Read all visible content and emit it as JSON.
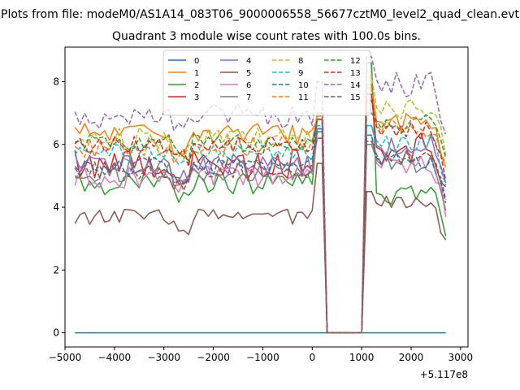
{
  "chart_data": {
    "type": "line",
    "suptitle": "Plots from file: modeM0/AS1A14_083T06_9000006558_56677cztM0_level2_quad_clean.evt",
    "title": "Quadrant 3 module wise count rates with 100.0s bins.",
    "xlabel": "",
    "ylabel": "",
    "x_offset_label": "+5.117e8",
    "xlim": [
      -5000,
      3150
    ],
    "ylim": [
      -0.45,
      9.1
    ],
    "xticks": [
      -5000,
      -4000,
      -3000,
      -2000,
      -1000,
      0,
      1000,
      2000,
      3000
    ],
    "xtick_labels": [
      "−5000",
      "−4000",
      "−3000",
      "−2000",
      "−1000",
      "0",
      "1000",
      "2000",
      "3000"
    ],
    "yticks": [
      0,
      2,
      4,
      6,
      8
    ],
    "ytick_labels": [
      "0",
      "2",
      "4",
      "6",
      "8"
    ],
    "legend": {
      "placement": "top-center",
      "ncol": 4
    },
    "gap": {
      "start": 250,
      "end": 1050
    },
    "x_range": {
      "start": -4800,
      "end": 2750,
      "step": 100
    },
    "series": [
      {
        "name": "0",
        "color": "#1f77b4",
        "style": "solid",
        "level": 0.0,
        "variation": 0.0,
        "edge": 0.0,
        "right_shift": 0.0,
        "peak": 0.0
      },
      {
        "name": "1",
        "color": "#ff7f0e",
        "style": "solid",
        "level": 6.35,
        "variation": 0.35,
        "edge": 6.8,
        "right_shift": 0.4,
        "peak": 7.9
      },
      {
        "name": "2",
        "color": "#2ca02c",
        "style": "solid",
        "level": 4.75,
        "variation": 0.35,
        "edge": 6.4,
        "right_shift": -0.3,
        "peak": 8.6
      },
      {
        "name": "3",
        "color": "#d62728",
        "style": "solid",
        "level": 5.4,
        "variation": 0.5,
        "edge": 7.0,
        "right_shift": 0.5,
        "peak": 7.6
      },
      {
        "name": "4",
        "color": "#9467bd",
        "style": "solid",
        "level": 5.35,
        "variation": 0.35,
        "edge": 6.8,
        "right_shift": 0.6,
        "peak": 6.6
      },
      {
        "name": "5",
        "color": "#8c564b",
        "style": "solid",
        "level": 3.7,
        "variation": 0.25,
        "edge": 5.4,
        "right_shift": 0.4,
        "peak": 4.5
      },
      {
        "name": "6",
        "color": "#e377c2",
        "style": "solid",
        "level": 4.95,
        "variation": 0.35,
        "edge": 6.2,
        "right_shift": 0.4,
        "peak": 6.3
      },
      {
        "name": "7",
        "color": "#7f7f7f",
        "style": "solid",
        "level": 5.15,
        "variation": 0.35,
        "edge": 6.5,
        "right_shift": 0.3,
        "peak": 6.0
      },
      {
        "name": "8",
        "color": "#bcbd22",
        "style": "dashed",
        "level": 6.2,
        "variation": 0.35,
        "edge": 7.0,
        "right_shift": 0.9,
        "peak": 8.2
      },
      {
        "name": "9",
        "color": "#17becf",
        "style": "dashed",
        "level": 5.75,
        "variation": 0.3,
        "edge": 6.6,
        "right_shift": 0.3,
        "peak": 6.6
      },
      {
        "name": "10",
        "color": "#1f77b4",
        "style": "dashed",
        "level": 5.3,
        "variation": 0.3,
        "edge": 6.5,
        "right_shift": 0.2,
        "peak": 6.3
      },
      {
        "name": "11",
        "color": "#ff7f0e",
        "style": "dashed",
        "level": 5.95,
        "variation": 0.35,
        "edge": 6.9,
        "right_shift": 0.6,
        "peak": 7.8
      },
      {
        "name": "12",
        "color": "#2ca02c",
        "style": "dashed",
        "level": 6.05,
        "variation": 0.3,
        "edge": 6.8,
        "right_shift": 0.6,
        "peak": 7.0
      },
      {
        "name": "13",
        "color": "#d62728",
        "style": "dashed",
        "level": 5.95,
        "variation": 0.3,
        "edge": 6.8,
        "right_shift": 0.5,
        "peak": 7.4
      },
      {
        "name": "14",
        "color": "#9467bd",
        "style": "dashed",
        "level": 6.9,
        "variation": 0.4,
        "edge": 8.0,
        "right_shift": 1.0,
        "peak": 8.8
      },
      {
        "name": "15",
        "color": "#8c564b",
        "style": "dashed",
        "level": 5.15,
        "variation": 0.3,
        "edge": 6.2,
        "right_shift": 0.4,
        "peak": 6.1
      }
    ]
  }
}
